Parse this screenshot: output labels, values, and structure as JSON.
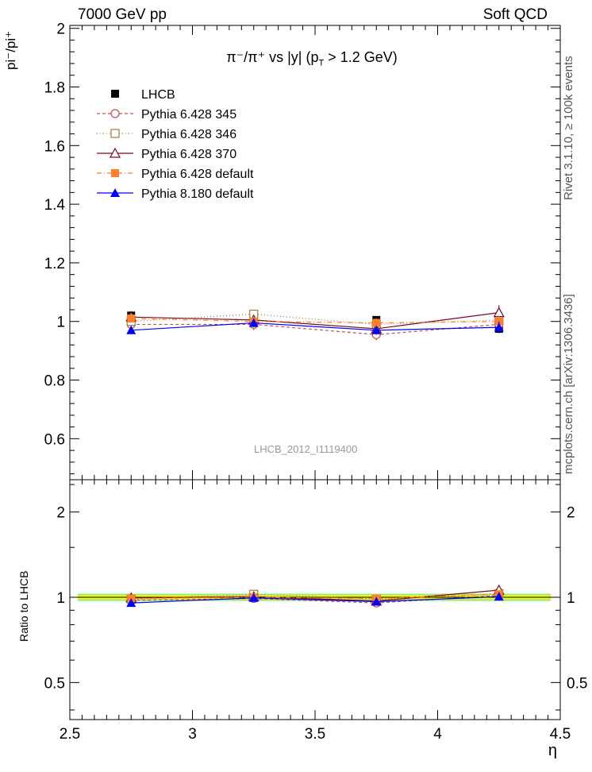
{
  "header": {
    "left": "7000 GeV pp",
    "right": "Soft QCD"
  },
  "side_text": {
    "top": "Rivet 3.1.10, ≥ 100k events",
    "bottom": "mcplots.cern.ch [arXiv:1306.3436]"
  },
  "watermark": "LHCB_2012_I1119400",
  "title": {
    "main": "π⁻/π⁺ vs |y| (p",
    "sub": "T",
    "tail": " > 1.2 GeV)"
  },
  "colors": {
    "lhcb": "#000000",
    "p345": "#c0504d",
    "p346": "#a0793d",
    "p370": "#7a0a1e",
    "p6def": "#ff7f2a",
    "p8def": "#0000ff",
    "band_inner": "#fffa00",
    "band_outer": "#9cf07a"
  },
  "chart_data": [
    {
      "type": "line",
      "title": "π⁻/π⁺ vs |y| (pT > 1.2 GeV)",
      "ylabel": "pi⁻/pi⁺",
      "xlim": [
        2.5,
        4.5
      ],
      "ylim": [
        0.46,
        2.01
      ],
      "yticks": [
        0.6,
        0.8,
        1.0,
        1.2,
        1.4,
        1.6,
        1.8,
        2.0
      ],
      "ytick_labels": [
        "0.6",
        "0.8",
        "1",
        "1.2",
        "1.4",
        "1.6",
        "1.8",
        "2"
      ],
      "legend_position": "top-left",
      "x": [
        2.75,
        3.25,
        3.75,
        4.25
      ],
      "series": [
        {
          "name": "LHCB",
          "values": [
            1.02,
            1.0,
            1.005,
            0.975
          ],
          "errors": [
            0.015,
            0.012,
            0.012,
            0.015
          ]
        },
        {
          "name": "Pythia 6.428 345",
          "values": [
            0.99,
            0.99,
            0.955,
            0.99
          ],
          "errors": [
            0.015,
            0.02,
            0.02,
            0.02
          ]
        },
        {
          "name": "Pythia 6.428 346",
          "values": [
            1.0,
            1.025,
            0.99,
            1.005
          ],
          "errors": [
            0.012,
            0.015,
            0.015,
            0.02
          ]
        },
        {
          "name": "Pythia 6.428 370",
          "values": [
            1.015,
            1.005,
            0.975,
            1.03
          ],
          "errors": [
            0.012,
            0.015,
            0.015,
            0.025
          ]
        },
        {
          "name": "Pythia 6.428 default",
          "values": [
            1.01,
            1.0,
            0.995,
            1.0
          ],
          "errors": [
            0.012,
            0.015,
            0.015,
            0.02
          ]
        },
        {
          "name": "Pythia 8.180 default",
          "values": [
            0.97,
            0.995,
            0.97,
            0.98
          ],
          "errors": [
            0.012,
            0.015,
            0.015,
            0.02
          ]
        }
      ]
    },
    {
      "type": "line",
      "ylabel": "Ratio to LHCB",
      "xlabel": "η",
      "xlim": [
        2.5,
        4.5
      ],
      "ylim": [
        0.37,
        2.6
      ],
      "log_y": true,
      "yticks": [
        0.5,
        1,
        2
      ],
      "ytick_labels": [
        "0.5",
        "1",
        "2"
      ],
      "xticks": [
        2.5,
        3,
        3.5,
        4,
        4.5
      ],
      "xtick_labels": [
        "2.5",
        "3",
        "3.5",
        "4",
        "4.5"
      ],
      "band": {
        "inner": 0.015,
        "outer": 0.03
      },
      "x": [
        2.75,
        3.25,
        3.75,
        4.25
      ],
      "series": [
        {
          "name": "Pythia 6.428 345",
          "values": [
            0.975,
            0.99,
            0.955,
            1.015
          ]
        },
        {
          "name": "Pythia 6.428 346",
          "values": [
            0.985,
            1.025,
            0.985,
            1.03
          ]
        },
        {
          "name": "Pythia 6.428 370",
          "values": [
            0.995,
            1.005,
            0.97,
            1.06
          ]
        },
        {
          "name": "Pythia 6.428 default",
          "values": [
            0.99,
            1.0,
            0.99,
            1.025
          ]
        },
        {
          "name": "Pythia 8.180 default",
          "values": [
            0.955,
            0.995,
            0.965,
            1.005
          ]
        }
      ]
    }
  ]
}
